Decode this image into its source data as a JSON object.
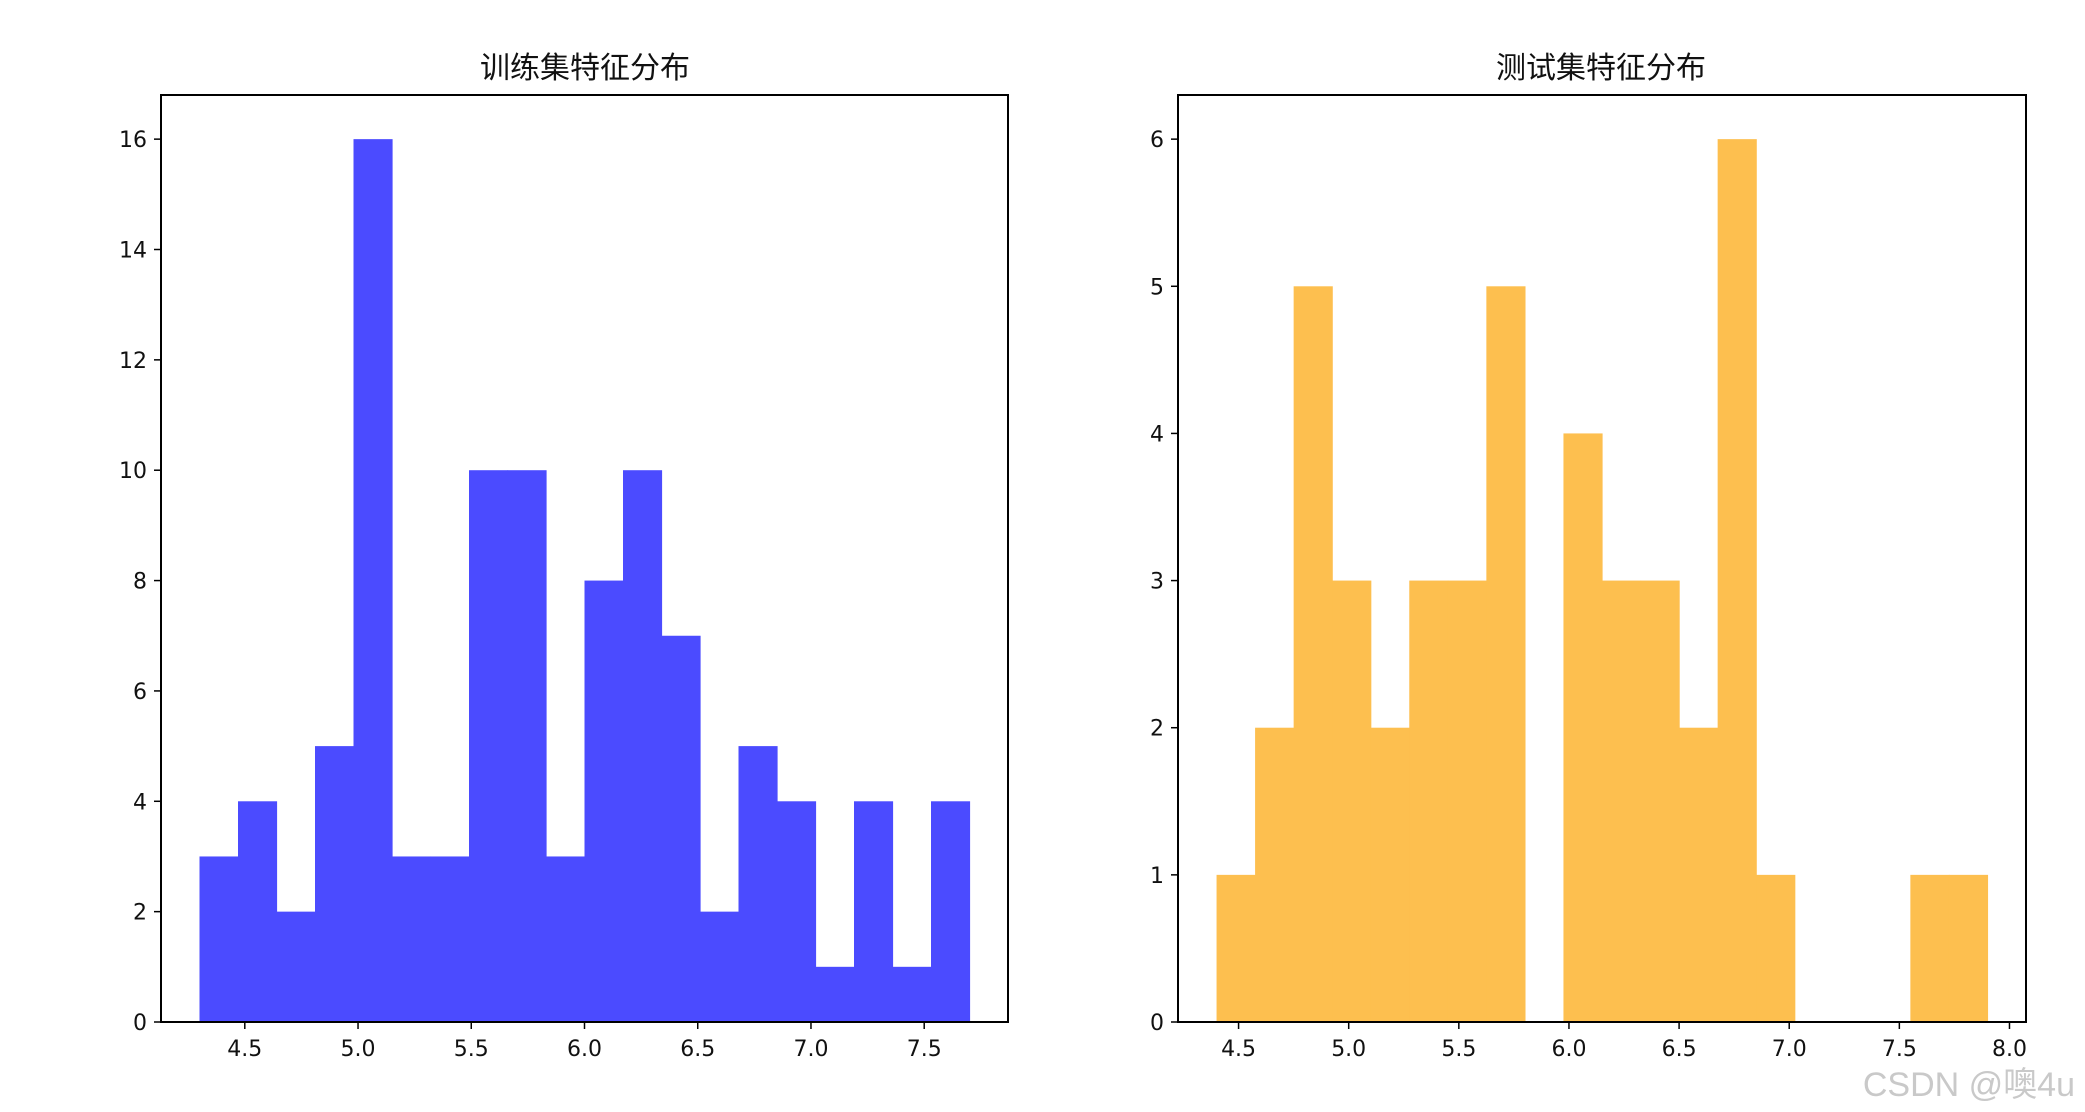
{
  "watermark": "CSDN @噢4u",
  "chart_data": [
    {
      "type": "bar",
      "title": "训练集特征分布",
      "xlabel": "",
      "ylabel": "",
      "color": "#4b4bff",
      "bins": [
        {
          "x0": 4.3,
          "x1": 4.47,
          "count": 3
        },
        {
          "x0": 4.47,
          "x1": 4.64,
          "count": 4
        },
        {
          "x0": 4.64,
          "x1": 4.81,
          "count": 2
        },
        {
          "x0": 4.81,
          "x1": 4.98,
          "count": 5
        },
        {
          "x0": 4.98,
          "x1": 5.15,
          "count": 16
        },
        {
          "x0": 5.15,
          "x1": 5.32,
          "count": 3
        },
        {
          "x0": 5.32,
          "x1": 5.49,
          "count": 3
        },
        {
          "x0": 5.49,
          "x1": 5.66,
          "count": 10
        },
        {
          "x0": 5.66,
          "x1": 5.83,
          "count": 10
        },
        {
          "x0": 5.83,
          "x1": 6.0,
          "count": 3
        },
        {
          "x0": 6.0,
          "x1": 6.17,
          "count": 8
        },
        {
          "x0": 6.17,
          "x1": 6.34,
          "count": 10
        },
        {
          "x0": 6.34,
          "x1": 6.51,
          "count": 7
        },
        {
          "x0": 6.51,
          "x1": 6.68,
          "count": 2
        },
        {
          "x0": 6.68,
          "x1": 6.85,
          "count": 5
        },
        {
          "x0": 6.85,
          "x1": 7.02,
          "count": 4
        },
        {
          "x0": 7.02,
          "x1": 7.19,
          "count": 1
        },
        {
          "x0": 7.19,
          "x1": 7.36,
          "count": 4
        },
        {
          "x0": 7.36,
          "x1": 7.53,
          "count": 1
        },
        {
          "x0": 7.53,
          "x1": 7.7,
          "count": 4
        }
      ],
      "xlim": [
        4.13,
        7.87
      ],
      "ylim": [
        0,
        16.8
      ],
      "xticks": [
        4.5,
        5.0,
        5.5,
        6.0,
        6.5,
        7.0,
        7.5
      ],
      "xtick_labels": [
        "4.5",
        "5.0",
        "5.5",
        "6.0",
        "6.5",
        "7.0",
        "7.5"
      ],
      "yticks": [
        0,
        2,
        4,
        6,
        8,
        10,
        12,
        14,
        16
      ],
      "ytick_labels": [
        "0",
        "2",
        "4",
        "6",
        "8",
        "10",
        "12",
        "14",
        "16"
      ],
      "grid": false
    },
    {
      "type": "bar",
      "title": "测试集特征分布",
      "xlabel": "",
      "ylabel": "",
      "color": "#fdbf4f",
      "bins": [
        {
          "x0": 4.4,
          "x1": 4.575,
          "count": 1
        },
        {
          "x0": 4.575,
          "x1": 4.75,
          "count": 2
        },
        {
          "x0": 4.75,
          "x1": 4.925,
          "count": 5
        },
        {
          "x0": 4.925,
          "x1": 5.1,
          "count": 3
        },
        {
          "x0": 5.1,
          "x1": 5.275,
          "count": 2
        },
        {
          "x0": 5.275,
          "x1": 5.45,
          "count": 3
        },
        {
          "x0": 5.45,
          "x1": 5.625,
          "count": 3
        },
        {
          "x0": 5.625,
          "x1": 5.8,
          "count": 5
        },
        {
          "x0": 5.8,
          "x1": 5.975,
          "count": 0
        },
        {
          "x0": 5.975,
          "x1": 6.15,
          "count": 4
        },
        {
          "x0": 6.15,
          "x1": 6.325,
          "count": 3
        },
        {
          "x0": 6.325,
          "x1": 6.5,
          "count": 3
        },
        {
          "x0": 6.5,
          "x1": 6.675,
          "count": 2
        },
        {
          "x0": 6.675,
          "x1": 6.85,
          "count": 6
        },
        {
          "x0": 6.85,
          "x1": 7.025,
          "count": 1
        },
        {
          "x0": 7.025,
          "x1": 7.2,
          "count": 0
        },
        {
          "x0": 7.2,
          "x1": 7.375,
          "count": 0
        },
        {
          "x0": 7.375,
          "x1": 7.55,
          "count": 0
        },
        {
          "x0": 7.55,
          "x1": 7.725,
          "count": 1
        },
        {
          "x0": 7.725,
          "x1": 7.9,
          "count": 1
        }
      ],
      "xlim": [
        4.225,
        8.075
      ],
      "ylim": [
        0,
        6.3
      ],
      "xticks": [
        4.5,
        5.0,
        5.5,
        6.0,
        6.5,
        7.0,
        7.5,
        8.0
      ],
      "xtick_labels": [
        "4.5",
        "5.0",
        "5.5",
        "6.0",
        "6.5",
        "7.0",
        "7.5",
        "8.0"
      ],
      "yticks": [
        0,
        1,
        2,
        3,
        4,
        5,
        6
      ],
      "ytick_labels": [
        "0",
        "1",
        "2",
        "3",
        "4",
        "5",
        "6"
      ],
      "grid": false
    }
  ]
}
